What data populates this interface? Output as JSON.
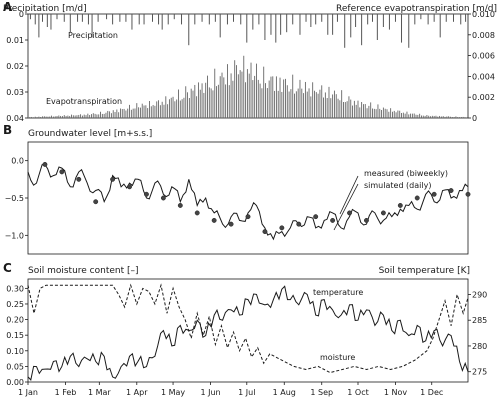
{
  "chart_data": [
    {
      "panel": "A",
      "type": "bar",
      "ylabel": "Precipitation [m/d]",
      "y2label": "Reference evapotranspiration [m/d]",
      "ylim": [
        0.04,
        0
      ],
      "yticks": [
        "0",
        "0.01",
        "0.02",
        "0.03",
        "0.04"
      ],
      "y2lim": [
        0,
        0.01
      ],
      "y2ticks": [
        "0",
        "0.002",
        "0.004",
        "0.006",
        "0.008",
        "0.010"
      ],
      "annotations": [
        "Precipitation",
        "Evapotranspiration"
      ],
      "series": [
        {
          "name": "Precipitation",
          "points": [
            [
              2,
              0.002
            ],
            [
              6,
              0.004
            ],
            [
              9,
              0.009
            ],
            [
              12,
              0.003
            ],
            [
              16,
              0.005
            ],
            [
              19,
              0.006
            ],
            [
              24,
              0.002
            ],
            [
              30,
              0.003
            ],
            [
              35,
              0.007
            ],
            [
              41,
              0.003
            ],
            [
              45,
              0.003
            ],
            [
              50,
              0.004
            ],
            [
              53,
              0.009
            ],
            [
              58,
              0.003
            ],
            [
              65,
              0.002
            ],
            [
              70,
              0.004
            ],
            [
              76,
              0.003
            ],
            [
              81,
              0.003
            ],
            [
              86,
              0.006
            ],
            [
              92,
              0.004
            ],
            [
              96,
              0.004
            ],
            [
              103,
              0.003
            ],
            [
              108,
              0.004
            ],
            [
              111,
              0.006
            ],
            [
              116,
              0.004
            ],
            [
              121,
              0.002
            ],
            [
              127,
              0.004
            ],
            [
              133,
              0.012
            ],
            [
              138,
              0.004
            ],
            [
              144,
              0.003
            ],
            [
              150,
              0.004
            ],
            [
              155,
              0.003
            ],
            [
              159,
              0.009
            ],
            [
              165,
              0.004
            ],
            [
              170,
              0.003
            ],
            [
              176,
              0.004
            ],
            [
              181,
              0.011
            ],
            [
              186,
              0.006
            ],
            [
              191,
              0.004
            ],
            [
              196,
              0.01
            ],
            [
              201,
              0.008
            ],
            [
              205,
              0.011
            ],
            [
              209,
              0.008
            ],
            [
              214,
              0.007
            ],
            [
              219,
              0.004
            ],
            [
              225,
              0.008
            ],
            [
              230,
              0.003
            ],
            [
              234,
              0.005
            ],
            [
              238,
              0.004
            ],
            [
              243,
              0.003
            ],
            [
              248,
              0.008
            ],
            [
              252,
              0.008
            ],
            [
              256,
              0.003
            ],
            [
              262,
              0.013
            ],
            [
              267,
              0.009
            ],
            [
              271,
              0.005
            ],
            [
              276,
              0.012
            ],
            [
              281,
              0.004
            ],
            [
              285,
              0.003
            ],
            [
              289,
              0.01
            ],
            [
              294,
              0.005
            ],
            [
              299,
              0.006
            ],
            [
              304,
              0.003
            ],
            [
              309,
              0.011
            ],
            [
              315,
              0.013
            ],
            [
              320,
              0.004
            ],
            [
              325,
              0.002
            ],
            [
              331,
              0.004
            ],
            [
              336,
              0.003
            ],
            [
              341,
              0.009
            ],
            [
              346,
              0.003
            ],
            [
              352,
              0.003
            ],
            [
              358,
              0.004
            ],
            [
              362,
              0.003
            ]
          ]
        },
        {
          "name": "Evapotranspiration",
          "x": [
            0,
            15,
            30,
            45,
            60,
            75,
            90,
            105,
            120,
            135,
            150,
            165,
            175,
            185,
            195,
            210,
            225,
            240,
            255,
            270,
            285,
            300,
            315,
            330,
            345,
            364
          ],
          "y": [
            0.0001,
            0.0002,
            0.0003,
            0.0004,
            0.0006,
            0.001,
            0.0015,
            0.0018,
            0.0025,
            0.0035,
            0.0045,
            0.0055,
            0.0065,
            0.006,
            0.005,
            0.0045,
            0.004,
            0.0035,
            0.003,
            0.002,
            0.0015,
            0.001,
            0.0006,
            0.0003,
            0.0002,
            0.0001
          ]
        }
      ]
    },
    {
      "panel": "B",
      "type": "line",
      "ylabel": "Groundwater level [m+s.s.]",
      "ylim": [
        -1.25,
        0.25
      ],
      "yticks": [
        "0.0",
        "−0.5",
        "−1.0"
      ],
      "series": [
        {
          "name": "simulated (daily)",
          "x": [
            0,
            7,
            14,
            21,
            28,
            35,
            42,
            49,
            56,
            63,
            70,
            77,
            84,
            91,
            98,
            105,
            112,
            119,
            126,
            133,
            140,
            147,
            154,
            161,
            168,
            175,
            182,
            189,
            196,
            203,
            210,
            217,
            224,
            231,
            238,
            245,
            252,
            259,
            266,
            273,
            280,
            287,
            294,
            301,
            308,
            315,
            322,
            329,
            336,
            343,
            350,
            357,
            364
          ],
          "y": [
            -0.15,
            -0.3,
            -0.05,
            -0.2,
            -0.1,
            -0.35,
            -0.15,
            -0.3,
            -0.4,
            -0.55,
            -0.2,
            -0.35,
            -0.3,
            -0.25,
            -0.5,
            -0.3,
            -0.45,
            -0.35,
            -0.55,
            -0.25,
            -0.6,
            -0.5,
            -0.7,
            -0.85,
            -0.75,
            -0.8,
            -0.7,
            -0.6,
            -0.9,
            -1.05,
            -0.95,
            -0.9,
            -0.85,
            -0.75,
            -0.9,
            -0.8,
            -0.7,
            -0.9,
            -0.75,
            -0.7,
            -0.85,
            -0.7,
            -0.8,
            -0.75,
            -0.65,
            -0.6,
            -0.65,
            -0.45,
            -0.55,
            -0.4,
            -0.5,
            -0.4,
            -0.35
          ]
        },
        {
          "name": "measured (biweekly)",
          "x": [
            14,
            28,
            42,
            56,
            70,
            84,
            98,
            112,
            126,
            140,
            154,
            168,
            182,
            196,
            210,
            224,
            238,
            252,
            266,
            280,
            294,
            308,
            322,
            336,
            350,
            364
          ],
          "y": [
            -0.05,
            -0.15,
            -0.25,
            -0.55,
            -0.25,
            -0.35,
            -0.45,
            -0.5,
            -0.6,
            -0.7,
            -0.8,
            -0.85,
            -0.75,
            -0.95,
            -0.9,
            -0.85,
            -0.75,
            -0.8,
            -0.7,
            -0.8,
            -0.7,
            -0.6,
            -0.5,
            -0.45,
            -0.4,
            -0.45
          ]
        }
      ]
    },
    {
      "panel": "C",
      "type": "line",
      "ylabel": "Soil moisture content [–]",
      "y2label": "Soil temperature [K]",
      "ylim": [
        0,
        0.33
      ],
      "yticks": [
        "0.00",
        "0.05",
        "0.10",
        "0.15",
        "0.20",
        "0.25",
        "0.30"
      ],
      "y2lim": [
        273,
        293
      ],
      "y2ticks": [
        "275",
        "280",
        "285",
        "290"
      ],
      "annotations": [
        "temperature",
        "moisture"
      ],
      "categories": [
        "1 Jan",
        "1 Feb",
        "1 Mar",
        "1 Apr",
        "1 May",
        "1 Jun",
        "1 Jul",
        "1 Aug",
        "1 Sep",
        "1 Oct",
        "1 Nov",
        "1 Dec"
      ],
      "series": [
        {
          "name": "moisture",
          "x": [
            0,
            5,
            10,
            15,
            20,
            30,
            45,
            60,
            70,
            75,
            80,
            85,
            90,
            95,
            100,
            105,
            110,
            115,
            120,
            125,
            130,
            135,
            140,
            145,
            150,
            155,
            160,
            165,
            170,
            175,
            180,
            185,
            190,
            195,
            200,
            210,
            220,
            230,
            240,
            250,
            260,
            270,
            280,
            290,
            300,
            310,
            320,
            330,
            335,
            340,
            345,
            350,
            355,
            360,
            364
          ],
          "y": [
            0.31,
            0.22,
            0.3,
            0.31,
            0.31,
            0.31,
            0.31,
            0.31,
            0.31,
            0.28,
            0.24,
            0.31,
            0.25,
            0.3,
            0.29,
            0.25,
            0.31,
            0.22,
            0.3,
            0.24,
            0.2,
            0.14,
            0.22,
            0.15,
            0.21,
            0.12,
            0.18,
            0.11,
            0.16,
            0.1,
            0.14,
            0.08,
            0.11,
            0.06,
            0.09,
            0.07,
            0.05,
            0.04,
            0.05,
            0.03,
            0.04,
            0.05,
            0.04,
            0.05,
            0.04,
            0.05,
            0.07,
            0.1,
            0.14,
            0.2,
            0.26,
            0.18,
            0.28,
            0.22,
            0.27
          ]
        },
        {
          "name": "temperature",
          "x": [
            0,
            7,
            14,
            21,
            28,
            35,
            42,
            49,
            56,
            63,
            70,
            77,
            84,
            91,
            98,
            105,
            112,
            119,
            126,
            133,
            140,
            147,
            154,
            161,
            168,
            175,
            182,
            189,
            196,
            203,
            210,
            217,
            224,
            231,
            238,
            245,
            252,
            259,
            266,
            273,
            280,
            287,
            294,
            301,
            308,
            315,
            322,
            329,
            336,
            343,
            350,
            357,
            364
          ],
          "y": [
            274,
            276,
            275.5,
            277,
            276,
            278,
            276,
            277.5,
            277,
            278,
            274,
            276,
            278,
            277,
            276,
            278,
            283,
            280,
            284,
            283,
            285,
            282,
            286,
            285,
            287,
            286,
            289,
            290,
            288,
            289,
            291,
            289,
            288,
            290,
            286,
            289,
            287,
            286,
            288,
            285,
            287,
            284,
            286,
            283,
            285,
            282,
            284,
            281,
            283,
            280,
            282,
            277,
            275
          ]
        }
      ]
    }
  ]
}
